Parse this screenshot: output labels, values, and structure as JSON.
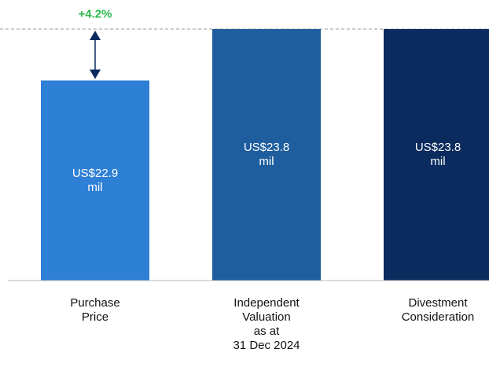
{
  "chart_data": {
    "type": "bar",
    "categories": [
      "Purchase\nPrice",
      "Independent\nValuation\nas at\n31 Dec 2024",
      "Divestment\nConsideration"
    ],
    "values": [
      22.9,
      23.8,
      23.8
    ],
    "value_labels": [
      "US$22.9\nmil",
      "US$23.8\nmil",
      "US$23.8\nmil"
    ],
    "colors": [
      "#2e7fd6",
      "#1f5e9e",
      "#0b2a5e"
    ],
    "ylim": [
      19.4,
      23.8
    ],
    "annotation": "+4.2%",
    "annotation_color": "#2db84d"
  }
}
